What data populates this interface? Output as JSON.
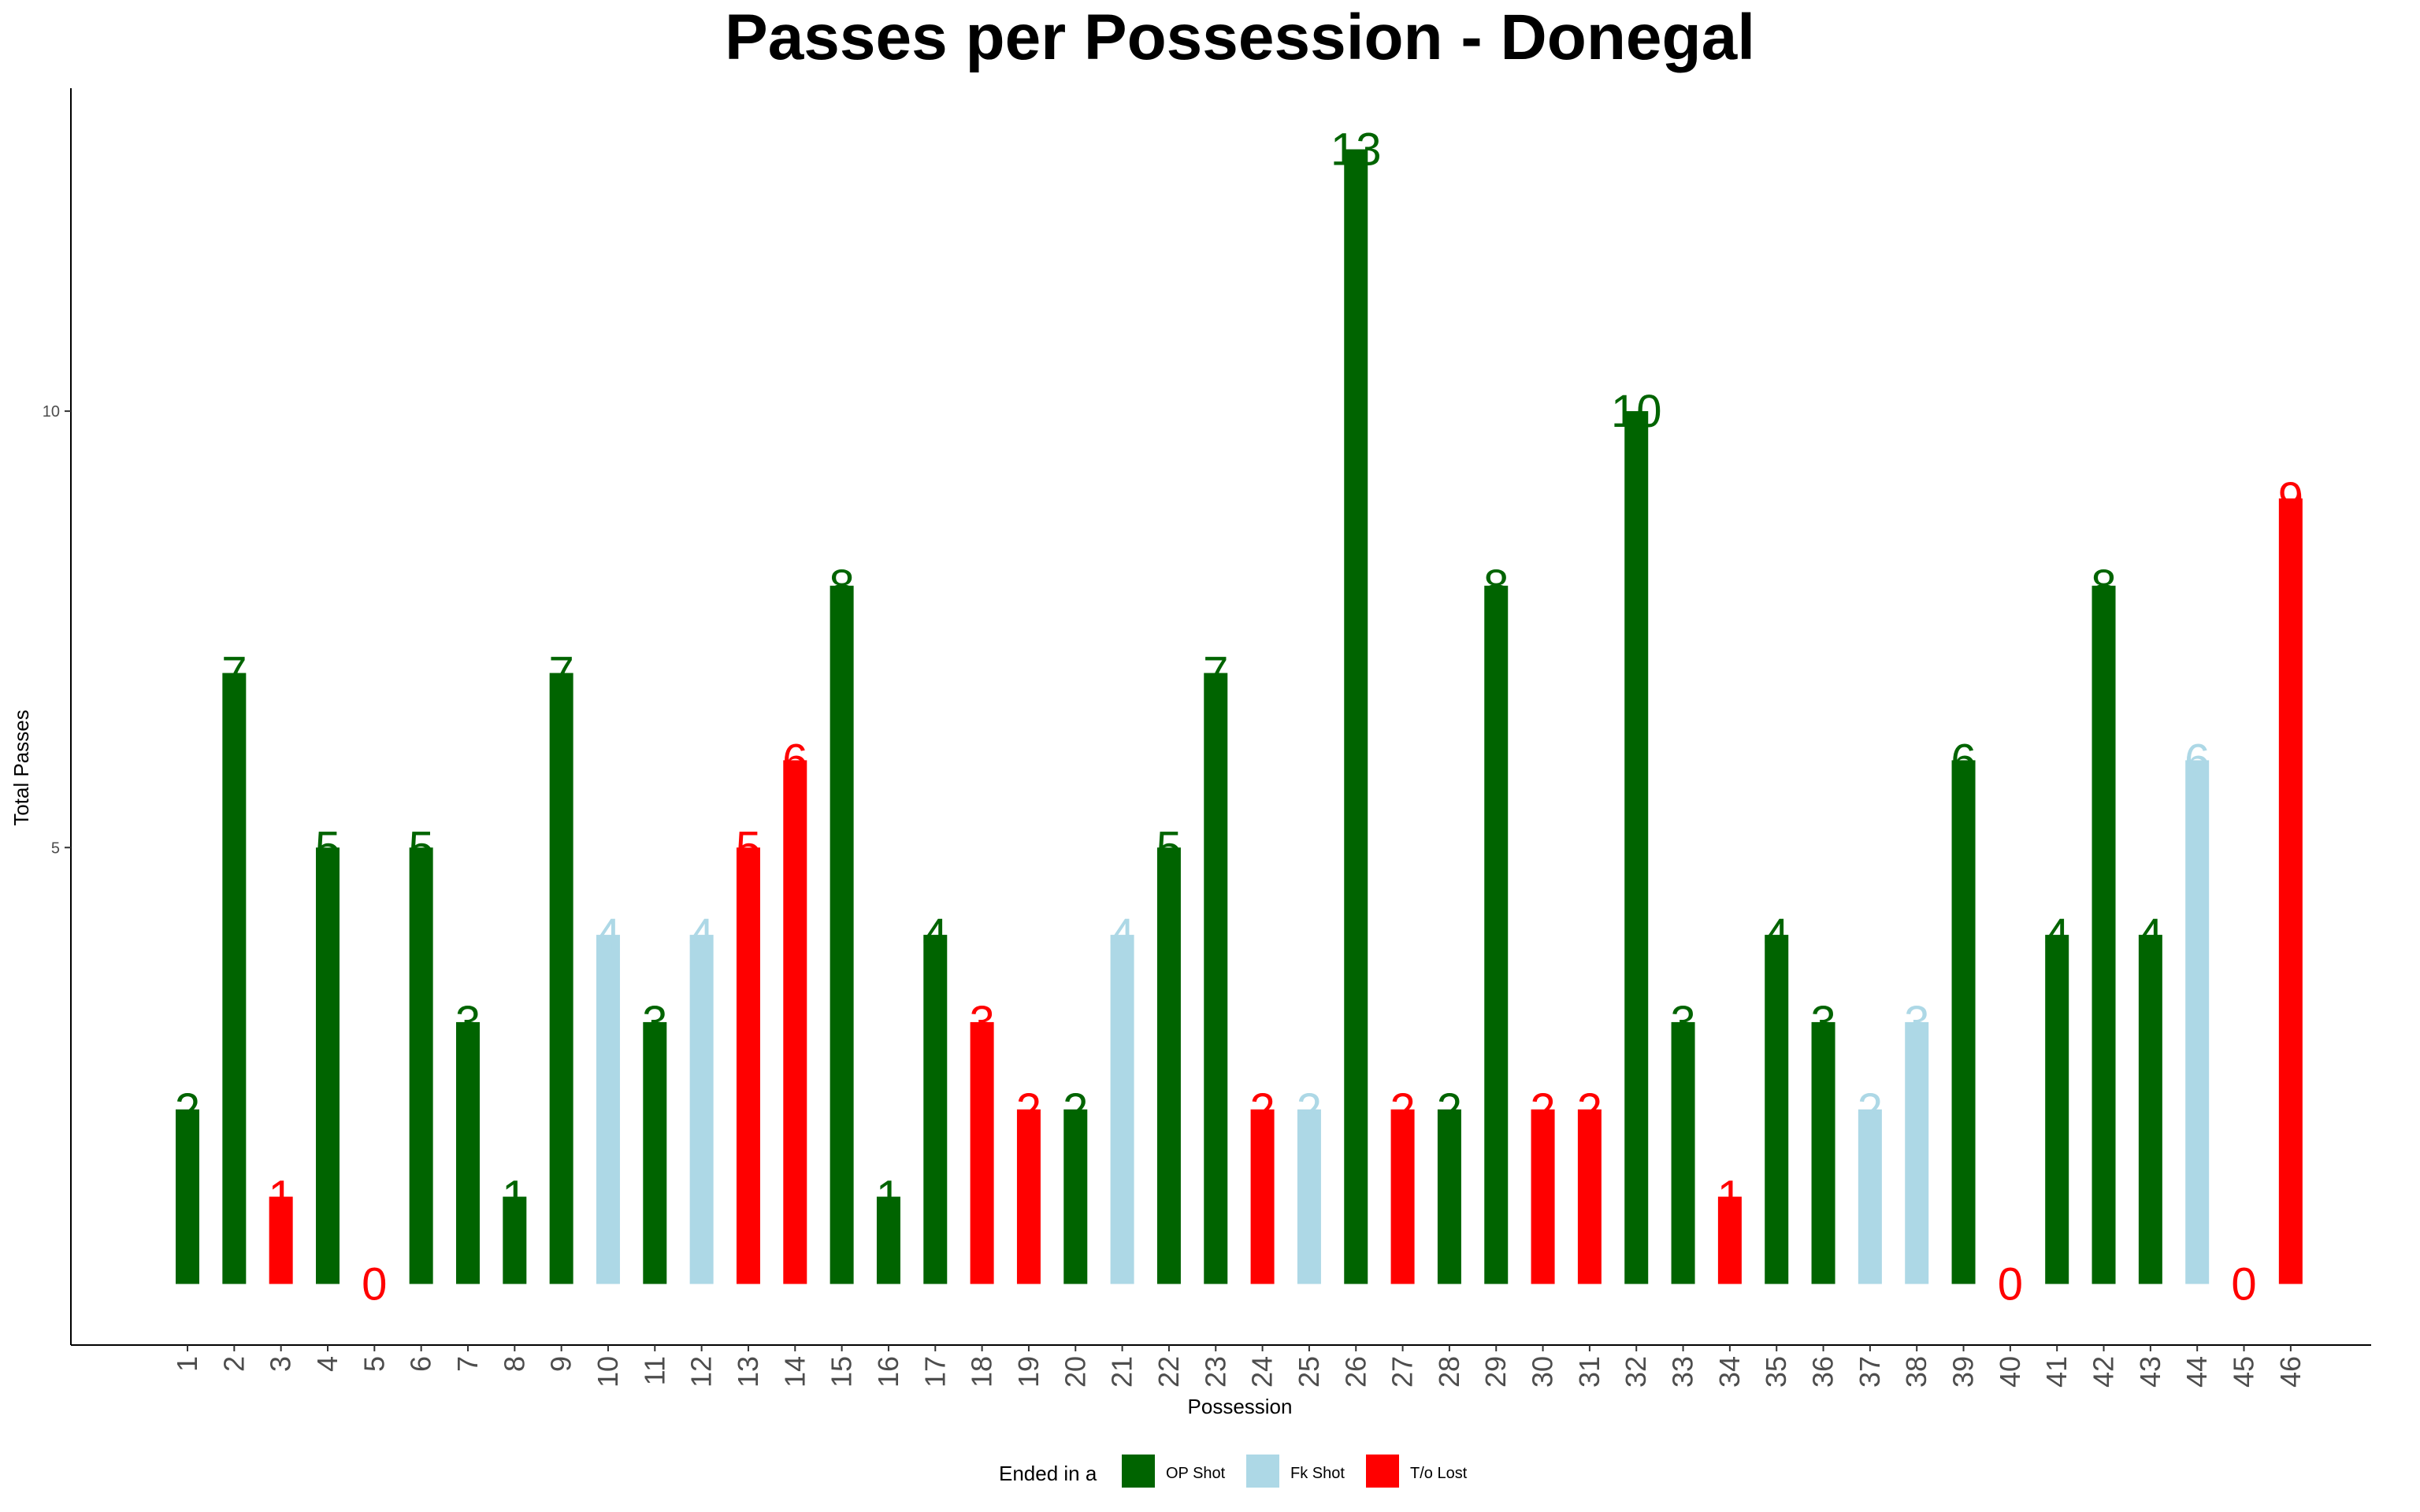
{
  "chart_data": {
    "type": "bar",
    "title": "Passes per Possession - Donegal",
    "xlabel": "Possession",
    "ylabel": "Total Passes",
    "ylim": [
      -0.7,
      13.7
    ],
    "yticks": [
      5,
      10
    ],
    "grid": false,
    "legend_placement": "bottom",
    "legend": {
      "title": "Ended in a",
      "entries": [
        {
          "key": "op",
          "label": "OP Shot",
          "color": "#006400"
        },
        {
          "key": "fk",
          "label": "Fk Shot",
          "color": "#ADD8E6"
        },
        {
          "key": "to",
          "label": "T/o Lost",
          "color": "#FF0000"
        }
      ]
    },
    "categories": [
      "1",
      "2",
      "3",
      "4",
      "5",
      "6",
      "7",
      "8",
      "9",
      "10",
      "11",
      "12",
      "13",
      "14",
      "15",
      "16",
      "17",
      "18",
      "19",
      "20",
      "21",
      "22",
      "23",
      "24",
      "25",
      "26",
      "27",
      "28",
      "29",
      "30",
      "31",
      "32",
      "33",
      "34",
      "35",
      "36",
      "37",
      "38",
      "39",
      "40",
      "41",
      "42",
      "43",
      "44",
      "45",
      "46"
    ],
    "values": [
      2,
      7,
      1,
      5,
      0,
      5,
      3,
      1,
      7,
      4,
      3,
      4,
      5,
      6,
      8,
      1,
      4,
      3,
      2,
      2,
      4,
      5,
      7,
      2,
      2,
      13,
      2,
      2,
      8,
      2,
      2,
      10,
      3,
      1,
      4,
      3,
      2,
      3,
      6,
      0,
      4,
      8,
      4,
      6,
      0,
      9
    ],
    "outcome": [
      "op",
      "op",
      "to",
      "op",
      "to",
      "op",
      "op",
      "op",
      "op",
      "fk",
      "op",
      "fk",
      "to",
      "to",
      "op",
      "op",
      "op",
      "to",
      "to",
      "op",
      "fk",
      "op",
      "op",
      "to",
      "fk",
      "op",
      "to",
      "op",
      "op",
      "to",
      "to",
      "op",
      "op",
      "to",
      "op",
      "op",
      "fk",
      "fk",
      "op",
      "to",
      "op",
      "op",
      "op",
      "fk",
      "to",
      "to"
    ]
  }
}
